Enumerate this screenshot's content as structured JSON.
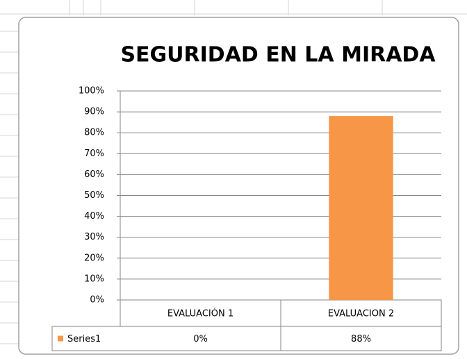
{
  "chart_data": {
    "type": "bar",
    "title": "SEGURIDAD EN LA MIRADA",
    "categories": [
      "EVALUACIÓN 1",
      "EVALUACION 2"
    ],
    "series": [
      {
        "name": "Series1",
        "color": "#f79646",
        "values": [
          0,
          88
        ],
        "value_labels": [
          "0%",
          "88%"
        ]
      }
    ],
    "ylim": [
      0,
      100
    ],
    "yticks": [
      {
        "value": 0,
        "label": "0%"
      },
      {
        "value": 10,
        "label": "10%"
      },
      {
        "value": 20,
        "label": "20%"
      },
      {
        "value": 30,
        "label": "30%"
      },
      {
        "value": 40,
        "label": "40%"
      },
      {
        "value": 50,
        "label": "50%"
      },
      {
        "value": 60,
        "label": "60%"
      },
      {
        "value": 70,
        "label": "70%"
      },
      {
        "value": 80,
        "label": "80%"
      },
      {
        "value": 90,
        "label": "90%"
      },
      {
        "value": 100,
        "label": "100%"
      }
    ],
    "grid": true
  }
}
